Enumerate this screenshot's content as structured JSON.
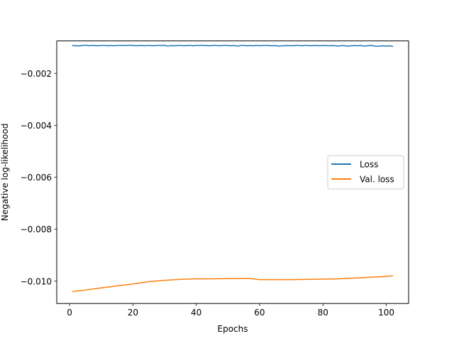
{
  "chart_data": {
    "type": "line",
    "title": "",
    "xlabel": "Epochs",
    "ylabel": "Negative log-likelihood",
    "xlim": [
      -4.05,
      107.05
    ],
    "ylim": [
      -0.01086,
      -0.00075
    ],
    "xticks": [
      0,
      20,
      40,
      60,
      80,
      100
    ],
    "xtick_labels": [
      "0",
      "20",
      "40",
      "60",
      "80",
      "100"
    ],
    "yticks": [
      -0.002,
      -0.004,
      -0.006,
      -0.008,
      -0.01
    ],
    "ytick_labels": [
      "−0.002",
      "−0.004",
      "−0.006",
      "−0.008",
      "−0.010"
    ],
    "grid": false,
    "legend": {
      "position": "center-right"
    },
    "series": [
      {
        "name": "Loss",
        "color": "#1f77b4",
        "x": [
          1,
          2,
          3,
          4,
          5,
          6,
          7,
          8,
          9,
          10,
          11,
          12,
          13,
          14,
          15,
          16,
          17,
          18,
          19,
          20,
          21,
          22,
          23,
          24,
          25,
          26,
          27,
          28,
          29,
          30,
          31,
          32,
          33,
          34,
          35,
          36,
          37,
          38,
          39,
          40,
          41,
          42,
          43,
          44,
          45,
          46,
          47,
          48,
          49,
          50,
          51,
          52,
          53,
          54,
          55,
          56,
          57,
          58,
          59,
          60,
          61,
          62,
          63,
          64,
          65,
          66,
          67,
          68,
          69,
          70,
          71,
          72,
          73,
          74,
          75,
          76,
          77,
          78,
          79,
          80,
          81,
          82,
          83,
          84,
          85,
          86,
          87,
          88,
          89,
          90,
          91,
          92,
          93,
          94,
          95,
          96,
          97,
          98,
          99,
          100,
          101,
          102
        ],
        "y": [
          -0.00093,
          -0.00094,
          -0.00094,
          -0.00093,
          -0.00091,
          -0.00094,
          -0.00092,
          -0.00093,
          -0.00094,
          -0.00093,
          -0.00092,
          -0.00094,
          -0.00093,
          -0.00094,
          -0.00093,
          -0.00092,
          -0.00093,
          -0.00092,
          -0.00092,
          -0.00092,
          -0.00094,
          -0.00093,
          -0.00093,
          -0.00094,
          -0.00092,
          -0.00094,
          -0.00093,
          -0.00092,
          -0.00093,
          -0.00092,
          -0.00095,
          -0.00093,
          -0.00094,
          -0.00093,
          -0.00092,
          -0.00094,
          -0.00093,
          -0.00092,
          -0.00094,
          -0.00092,
          -0.00093,
          -0.00092,
          -0.00093,
          -0.00094,
          -0.00093,
          -0.00092,
          -0.00094,
          -0.00093,
          -0.00092,
          -0.00093,
          -0.00094,
          -0.00093,
          -0.00095,
          -0.00093,
          -0.00092,
          -0.00094,
          -0.00093,
          -0.00094,
          -0.00092,
          -0.00094,
          -0.00093,
          -0.00092,
          -0.00093,
          -0.00094,
          -0.00093,
          -0.00095,
          -0.00094,
          -0.00094,
          -0.00093,
          -0.00094,
          -0.00093,
          -0.00092,
          -0.00094,
          -0.00093,
          -0.00092,
          -0.00094,
          -0.00093,
          -0.00093,
          -0.00094,
          -0.00093,
          -0.00093,
          -0.00094,
          -0.00093,
          -0.00094,
          -0.00095,
          -0.00093,
          -0.00094,
          -0.00095,
          -0.00094,
          -0.00093,
          -0.00094,
          -0.00093,
          -0.00095,
          -0.00094,
          -0.00093,
          -0.00094,
          -0.00096,
          -0.00095,
          -0.00094,
          -0.00095,
          -0.00094,
          -0.00096
        ]
      },
      {
        "name": "Val. loss",
        "color": "#ff7f0e",
        "x": [
          1,
          5,
          10,
          15,
          20,
          25,
          30,
          35,
          40,
          45,
          50,
          53,
          56,
          58,
          60,
          65,
          70,
          75,
          80,
          85,
          90,
          95,
          100,
          102
        ],
        "y": [
          -0.0104,
          -0.01034,
          -0.01026,
          -0.01018,
          -0.01011,
          -0.01002,
          -0.00997,
          -0.00993,
          -0.00991,
          -0.00991,
          -0.0099,
          -0.0099,
          -0.00989,
          -0.00991,
          -0.00994,
          -0.00994,
          -0.00994,
          -0.00993,
          -0.00992,
          -0.00991,
          -0.00988,
          -0.00985,
          -0.00982,
          -0.00979
        ]
      }
    ]
  }
}
